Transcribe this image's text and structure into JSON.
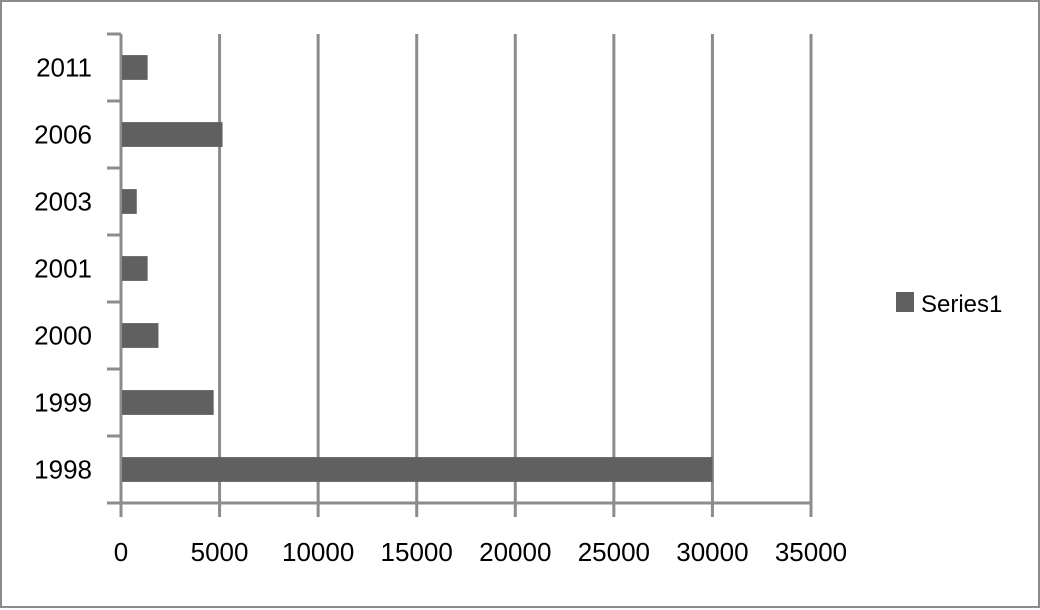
{
  "chart_data": {
    "type": "bar",
    "orientation": "horizontal",
    "categories": [
      "1998",
      "1999",
      "2000",
      "2001",
      "2003",
      "2006",
      "2011"
    ],
    "series": [
      {
        "name": "Series1",
        "values": [
          30000,
          4700,
          1900,
          1350,
          800,
          5150,
          1350
        ]
      }
    ],
    "x_ticks": [
      0,
      5000,
      10000,
      15000,
      20000,
      25000,
      30000,
      35000
    ],
    "x_tick_labels": [
      "0",
      "5000",
      "10000",
      "15000",
      "20000",
      "25000",
      "30000",
      "35000"
    ],
    "xlim": [
      0,
      35000
    ],
    "grid": "vertical major gridlines",
    "legend": "right",
    "colors": {
      "bar": "#606060",
      "gridline": "#8c8c8c",
      "axis": "#8c8c8c",
      "text": "#000000"
    }
  }
}
